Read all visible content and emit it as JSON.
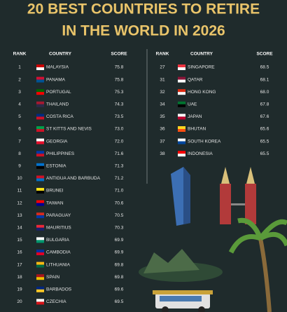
{
  "header": {
    "title_lines": [
      "20 BEST COUNTRIES TO RETIRE",
      "IN THE WORLD IN 2026"
    ]
  },
  "tables": [
    {
      "columns": [
        "RANK",
        "COUNTRY",
        "SCORE"
      ],
      "rows": [
        [
          "1",
          "MALAYSIA",
          "75.8"
        ],
        [
          "2",
          "PANAMA",
          "75.8"
        ],
        [
          "3",
          "PORTUGAL",
          "75.3"
        ],
        [
          "4",
          "THAILAND",
          "74.3"
        ],
        [
          "5",
          "COSTA RICA",
          "73.5"
        ],
        [
          "6",
          "ST KITTS AND NEVIS",
          "73.0"
        ],
        [
          "7",
          "GEORGIA",
          "72.0"
        ],
        [
          "8",
          "PHILIPPINES",
          "71.6"
        ],
        [
          "9",
          "ESTONIA",
          "71.3"
        ],
        [
          "10",
          "ANTIGUA AND BARBUDA",
          "71.2"
        ],
        [
          "11",
          "BRUNEI",
          "71.0"
        ],
        [
          "12",
          "TAIWAN",
          "70.6"
        ],
        [
          "13",
          "PARAGUAY",
          "70.5"
        ],
        [
          "14",
          "MAURITIUS",
          "70.3"
        ],
        [
          "15",
          "BULGARIA",
          "69.9"
        ],
        [
          "16",
          "CAMBODIA",
          "69.9"
        ],
        [
          "17",
          "LITHUANIA",
          "69.8"
        ],
        [
          "18",
          "SPAIN",
          "69.8"
        ],
        [
          "19",
          "BARBADOS",
          "69.6"
        ],
        [
          "20",
          "CZECHIA",
          "69.5"
        ]
      ]
    },
    {
      "columns": [
        "RANK",
        "COUNTRY",
        "SCORE"
      ],
      "rows": [
        [
          "27",
          "SINGAPORE",
          "68.5"
        ],
        [
          "31",
          "QATAR",
          "68.1"
        ],
        [
          "32",
          "HONG KONG",
          "68.0"
        ],
        [
          "34",
          "UAE",
          "67.8"
        ],
        [
          "35",
          "JAPAN",
          "67.6"
        ],
        [
          "36",
          "BHUTAN",
          "65.6"
        ],
        [
          "37",
          "SOUTH KOREA",
          "65.5"
        ],
        [
          "38",
          "INDONESIA",
          "65.5"
        ]
      ]
    }
  ]
}
